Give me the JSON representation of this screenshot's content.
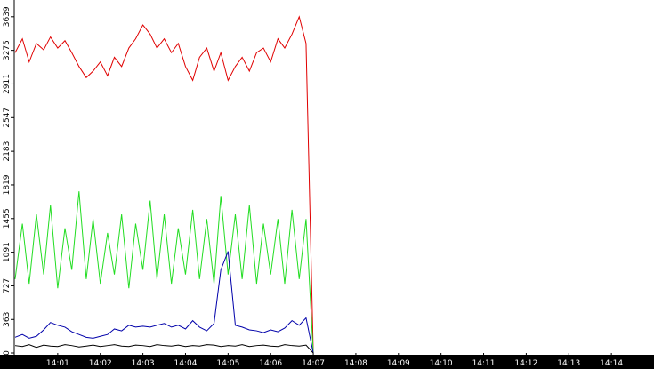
{
  "chart_data": {
    "type": "line",
    "x": [
      0,
      0.17,
      0.33,
      0.5,
      0.67,
      0.83,
      1,
      1.17,
      1.33,
      1.5,
      1.67,
      1.83,
      2,
      2.17,
      2.33,
      2.5,
      2.67,
      2.83,
      3,
      3.17,
      3.33,
      3.5,
      3.67,
      3.83,
      4,
      4.17,
      4.33,
      4.5,
      4.67,
      4.83,
      5,
      5.17,
      5.33,
      5.5,
      5.67,
      5.83,
      6,
      6.17,
      6.33,
      6.5,
      6.67,
      6.83,
      7
    ],
    "series": [
      {
        "color": "#e00000",
        "values": [
          3250,
          3400,
          3150,
          3350,
          3280,
          3420,
          3300,
          3380,
          3250,
          3100,
          2980,
          3050,
          3150,
          3000,
          3200,
          3100,
          3300,
          3400,
          3550,
          3450,
          3300,
          3400,
          3250,
          3350,
          3100,
          2950,
          3200,
          3300,
          3050,
          3250,
          2950,
          3100,
          3200,
          3050,
          3250,
          3300,
          3150,
          3400,
          3300,
          3450,
          3639,
          3350,
          0
        ]
      },
      {
        "color": "#22dd22",
        "values": [
          800,
          1400,
          750,
          1500,
          850,
          1600,
          700,
          1350,
          900,
          1750,
          800,
          1450,
          750,
          1300,
          850,
          1500,
          700,
          1400,
          900,
          1650,
          800,
          1500,
          750,
          1350,
          850,
          1550,
          800,
          1450,
          750,
          1700,
          850,
          1500,
          800,
          1600,
          750,
          1400,
          850,
          1450,
          750,
          1550,
          800,
          1450,
          0
        ]
      },
      {
        "color": "#0000aa",
        "values": [
          170,
          200,
          160,
          180,
          250,
          330,
          300,
          280,
          230,
          200,
          170,
          160,
          180,
          200,
          260,
          240,
          300,
          280,
          290,
          280,
          300,
          320,
          280,
          300,
          260,
          350,
          280,
          240,
          320,
          900,
          1100,
          300,
          280,
          250,
          240,
          220,
          250,
          230,
          270,
          350,
          300,
          380,
          0
        ]
      },
      {
        "color": "#000000",
        "values": [
          80,
          70,
          90,
          60,
          85,
          75,
          70,
          90,
          80,
          65,
          75,
          85,
          70,
          80,
          90,
          75,
          70,
          85,
          80,
          70,
          90,
          80,
          75,
          85,
          70,
          80,
          75,
          90,
          85,
          70,
          80,
          75,
          90,
          70,
          80,
          85,
          75,
          70,
          90,
          80,
          75,
          85,
          0
        ]
      }
    ],
    "xlim": [
      0,
      15
    ],
    "xticks": [
      {
        "value": 1,
        "label": "14:01"
      },
      {
        "value": 2,
        "label": "14:02"
      },
      {
        "value": 3,
        "label": "14:03"
      },
      {
        "value": 4,
        "label": "14:04"
      },
      {
        "value": 5,
        "label": "14:05"
      },
      {
        "value": 6,
        "label": "14:06"
      },
      {
        "value": 7,
        "label": "14:07"
      },
      {
        "value": 8,
        "label": "14:08"
      },
      {
        "value": 9,
        "label": "14:09"
      },
      {
        "value": 10,
        "label": "14:10"
      },
      {
        "value": 11,
        "label": "14:11"
      },
      {
        "value": 12,
        "label": "14:12"
      },
      {
        "value": 13,
        "label": "14:13"
      },
      {
        "value": 14,
        "label": "14:14"
      }
    ],
    "ylim": [
      0,
      3820
    ],
    "yticks": [
      0,
      363,
      727,
      1091,
      1455,
      1819,
      2183,
      2547,
      2911,
      3275,
      3639
    ]
  }
}
